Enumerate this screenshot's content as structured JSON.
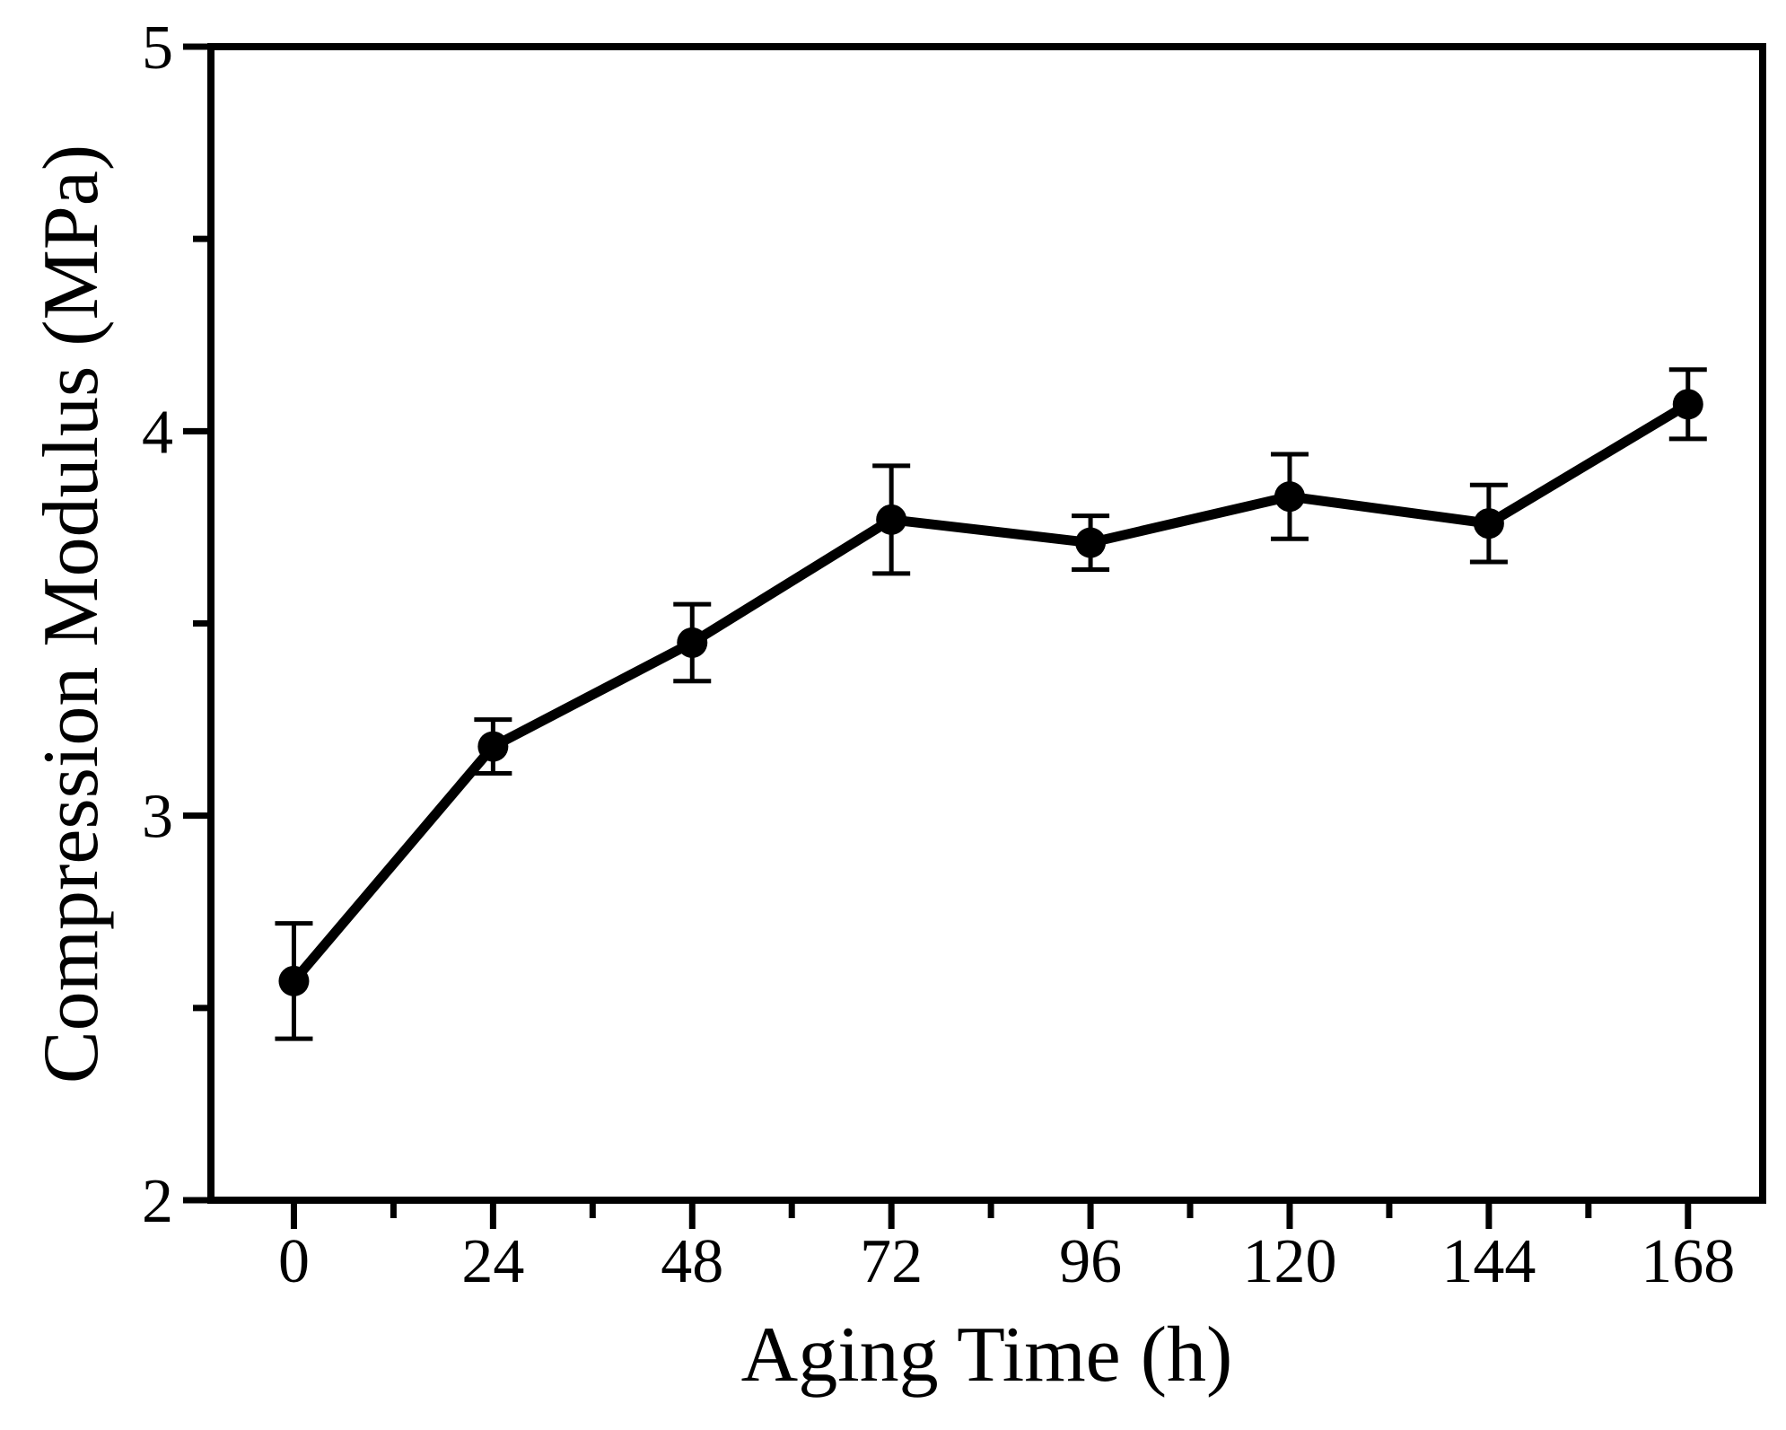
{
  "figure": {
    "background_color": "#ffffff",
    "foreground_color": "#000000"
  },
  "chart_data": {
    "type": "line",
    "title": "",
    "xlabel": "Aging Time (h)",
    "ylabel": "Compression Modulus (MPa)",
    "x": [
      0,
      24,
      48,
      72,
      96,
      120,
      144,
      168
    ],
    "series": [
      {
        "name": "compression-modulus",
        "values": [
          2.57,
          3.18,
          3.45,
          3.77,
          3.71,
          3.83,
          3.76,
          4.07
        ],
        "errors": [
          0.15,
          0.07,
          0.1,
          0.14,
          0.07,
          0.11,
          0.1,
          0.09
        ]
      }
    ],
    "xlim": [
      -10,
      177
    ],
    "ylim": [
      2,
      5
    ],
    "x_major_ticks": {
      "values": [
        0,
        24,
        48,
        72,
        96,
        120,
        144,
        168
      ],
      "labels": [
        "0",
        "24",
        "48",
        "72",
        "96",
        "120",
        "144",
        "168"
      ]
    },
    "x_minor_ticks": [
      12,
      36,
      60,
      84,
      108,
      132,
      156
    ],
    "y_major_ticks": {
      "values": [
        2,
        3,
        4,
        5
      ],
      "labels": [
        "2",
        "3",
        "4",
        "5"
      ]
    },
    "y_minor_ticks": [
      2.5,
      3.5,
      4.5
    ],
    "grid": false,
    "legend": "none",
    "marker": "filled-circle",
    "line_color": "#000000",
    "marker_color": "#000000",
    "error_bar_color": "#000000",
    "axis_color": "#000000"
  }
}
